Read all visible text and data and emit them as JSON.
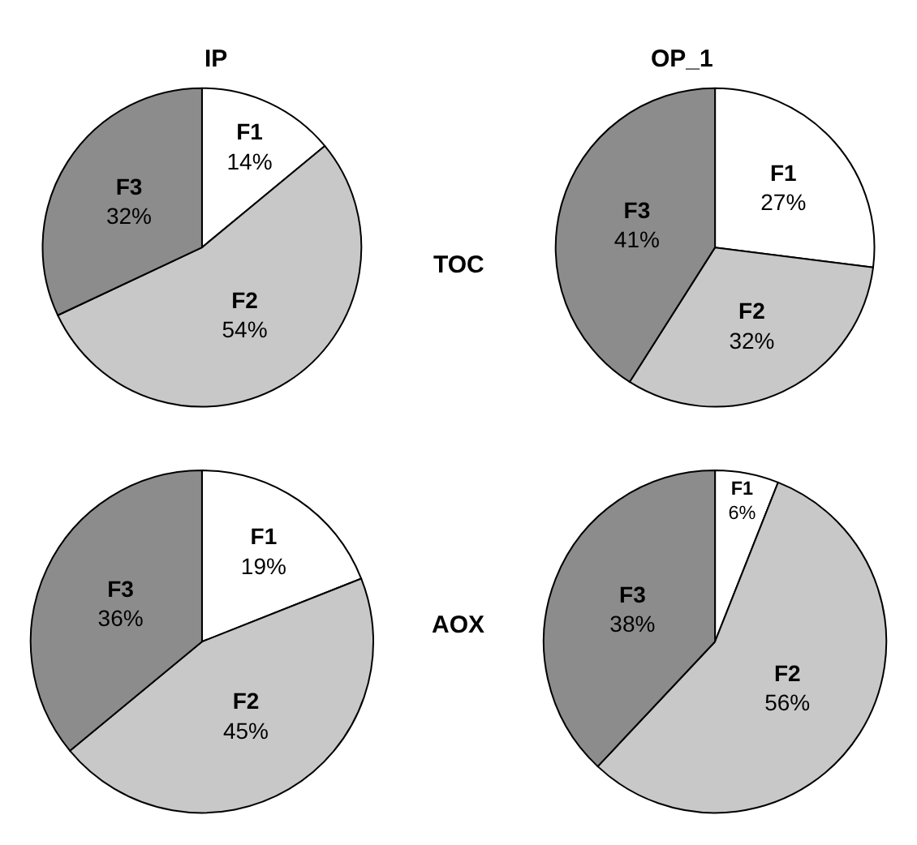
{
  "chart_data": [
    {
      "type": "pie",
      "title": "IP",
      "annotations": [
        "TOC"
      ],
      "categories": [
        "F1",
        "F2",
        "F3"
      ],
      "values": [
        14,
        54,
        32
      ],
      "value_labels": [
        "14%",
        "54%",
        "32%"
      ],
      "colors": [
        "#ffffff",
        "#c8c8c8",
        "#8c8c8c"
      ],
      "legend": false
    },
    {
      "type": "pie",
      "title": "OP_1",
      "categories": [
        "F1",
        "F2",
        "F3"
      ],
      "values": [
        27,
        32,
        41
      ],
      "value_labels": [
        "27%",
        "32%",
        "41%"
      ],
      "colors": [
        "#ffffff",
        "#c8c8c8",
        "#8c8c8c"
      ],
      "legend": false
    },
    {
      "type": "pie",
      "annotations": [
        "AOX"
      ],
      "categories": [
        "F1",
        "F2",
        "F3"
      ],
      "values": [
        19,
        45,
        36
      ],
      "value_labels": [
        "19%",
        "45%",
        "36%"
      ],
      "colors": [
        "#ffffff",
        "#c8c8c8",
        "#8c8c8c"
      ],
      "legend": false
    },
    {
      "type": "pie",
      "categories": [
        "F1",
        "F2",
        "F3"
      ],
      "values": [
        6,
        56,
        38
      ],
      "value_labels": [
        "6%",
        "56%",
        "38%"
      ],
      "colors": [
        "#ffffff",
        "#c8c8c8",
        "#8c8c8c"
      ],
      "legend": false
    }
  ]
}
